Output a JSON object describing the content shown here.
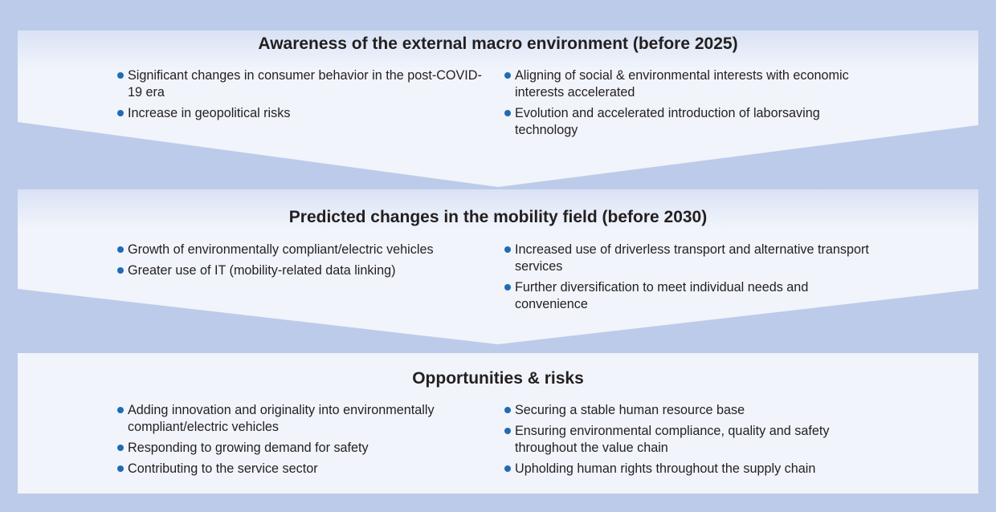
{
  "sections": [
    {
      "title": "Awareness of the external macro environment (before 2025)",
      "left": [
        "Significant changes in consumer behavior in the post-COVID-19 era",
        "Increase in geopolitical risks"
      ],
      "right": [
        "Aligning of social & environmental interests with economic interests accelerated",
        "Evolution and accelerated introduction of laborsaving technology"
      ]
    },
    {
      "title": "Predicted changes in the mobility field (before 2030)",
      "left": [
        "Growth of environmentally compliant/electric vehicles",
        "Greater use of IT (mobility-related data linking)"
      ],
      "right": [
        "Increased use of driverless transport and alternative transport services",
        "Further diversification to meet individual needs and convenience"
      ]
    },
    {
      "title": "Opportunities & risks",
      "left": [
        "Adding innovation and originality into environmentally compliant/electric vehicles",
        "Responding to growing demand for safety",
        "Contributing to the service sector"
      ],
      "right": [
        "Securing a stable human resource base",
        "Ensuring environmental compliance, quality and safety throughout the value chain",
        "Upholding human rights throughout the supply chain"
      ]
    }
  ],
  "colors": {
    "background": "#bccbe9",
    "panel": "#f1f4fb",
    "bullet": "#1f6bb5",
    "text": "#231f20"
  }
}
